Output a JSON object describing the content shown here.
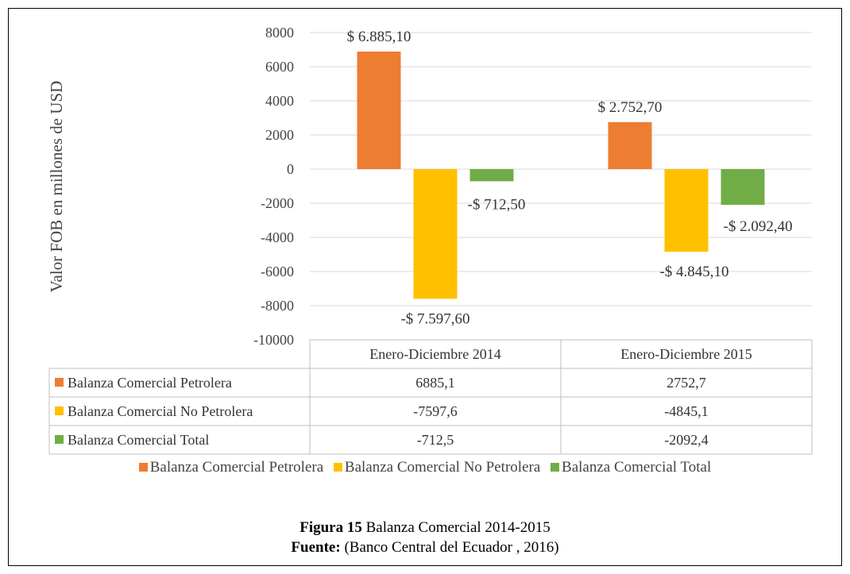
{
  "chart_data": {
    "type": "bar",
    "categories": [
      "Enero-Diciembre 2014",
      "Enero-Diciembre 2015"
    ],
    "series": [
      {
        "name": "Balanza Comercial Petrolera",
        "color": "#ED7D31",
        "values": [
          6885.1,
          2752.7
        ],
        "table_values": [
          "6885,1",
          "2752,7"
        ],
        "data_labels": [
          "$ 6.885,10",
          "$ 2.752,70"
        ]
      },
      {
        "name": "Balanza Comercial No Petrolera",
        "color": "#FFC000",
        "values": [
          -7597.6,
          -4845.1
        ],
        "table_values": [
          "-7597,6",
          "-4845,1"
        ],
        "data_labels": [
          "-$ 7.597,60",
          "-$ 4.845,10"
        ]
      },
      {
        "name": "Balanza Comercial Total",
        "color": "#70AD47",
        "values": [
          -712.5,
          -2092.4
        ],
        "table_values": [
          "-712,5",
          "-2092,4"
        ],
        "data_labels": [
          "-$ 712,50",
          "-$ 2.092,40"
        ]
      }
    ],
    "ylabel": "Valor FOB en millones de  USD",
    "xlabel": "",
    "ylim": [
      -10000,
      8000
    ],
    "yticks": [
      8000,
      6000,
      4000,
      2000,
      0,
      -2000,
      -4000,
      -6000,
      -8000,
      -10000
    ],
    "grid": true,
    "legend": "bottom",
    "data_table": true
  },
  "caption": {
    "figure_label": "Figura 15",
    "figure_title": " Balanza Comercial 2014-2015",
    "source_label": "Fuente:",
    "source_text": " (Banco Central del Ecuador , 2016)"
  }
}
